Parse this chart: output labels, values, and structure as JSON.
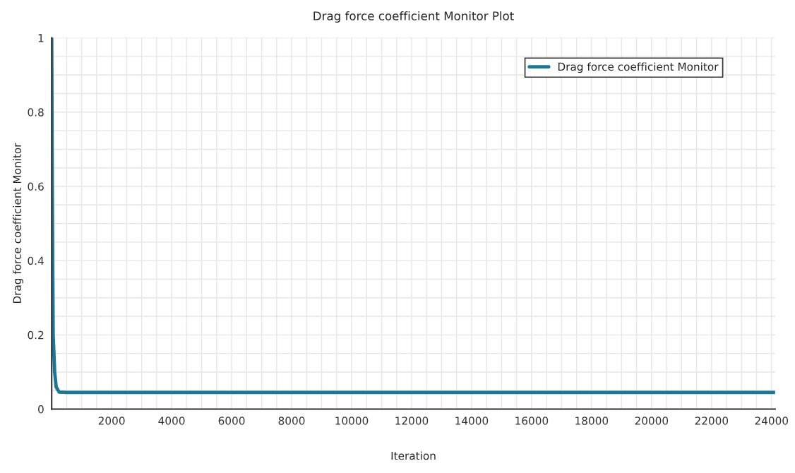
{
  "chart_data": {
    "type": "line",
    "title": "Drag force coefficient Monitor Plot",
    "xlabel": "Iteration",
    "ylabel": "Drag force coefficient Monitor",
    "x": [
      1,
      20,
      50,
      100,
      150,
      250,
      500,
      24120
    ],
    "series": [
      {
        "name": "Drag force coefficient Monitor",
        "color": "#1a7896",
        "values": [
          1,
          0.6,
          0.2,
          0.1,
          0.06,
          0.046,
          0.045,
          0.045
        ]
      }
    ],
    "xlim": [
      1,
      24120
    ],
    "ylim": [
      0,
      1
    ],
    "xticks": [
      {
        "value": 500,
        "label": null
      },
      {
        "value": 1000,
        "label": null
      },
      {
        "value": 1500,
        "label": null
      },
      2000,
      {
        "value": 2500,
        "label": null
      },
      {
        "value": 3000,
        "label": null
      },
      {
        "value": 3500,
        "label": null
      },
      4000,
      {
        "value": 4500,
        "label": null
      },
      {
        "value": 5000,
        "label": null
      },
      {
        "value": 5500,
        "label": null
      },
      6000,
      {
        "value": 6500,
        "label": null
      },
      {
        "value": 7000,
        "label": null
      },
      {
        "value": 7500,
        "label": null
      },
      8000,
      {
        "value": 8500,
        "label": null
      },
      {
        "value": 9000,
        "label": null
      },
      {
        "value": 9500,
        "label": null
      },
      10000,
      {
        "value": 10500,
        "label": null
      },
      {
        "value": 11000,
        "label": null
      },
      {
        "value": 11500,
        "label": null
      },
      12000,
      {
        "value": 12500,
        "label": null
      },
      {
        "value": 13000,
        "label": null
      },
      {
        "value": 13500,
        "label": null
      },
      14000,
      {
        "value": 14500,
        "label": null
      },
      {
        "value": 15000,
        "label": null
      },
      {
        "value": 15500,
        "label": null
      },
      16000,
      {
        "value": 16500,
        "label": null
      },
      {
        "value": 17000,
        "label": null
      },
      {
        "value": 17500,
        "label": null
      },
      18000,
      {
        "value": 18500,
        "label": null
      },
      {
        "value": 19000,
        "label": null
      },
      {
        "value": 19500,
        "label": null
      },
      20000,
      {
        "value": 20500,
        "label": null
      },
      {
        "value": 21000,
        "label": null
      },
      {
        "value": 21500,
        "label": null
      },
      22000,
      {
        "value": 22500,
        "label": null
      },
      {
        "value": 23000,
        "label": null
      },
      {
        "value": 23500,
        "label": null
      },
      24000
    ],
    "yticks": [
      0,
      {
        "value": 0.05,
        "label": null
      },
      {
        "value": 0.1,
        "label": null
      },
      {
        "value": 0.15,
        "label": null
      },
      0.2,
      {
        "value": 0.25,
        "label": null
      },
      {
        "value": 0.3,
        "label": null
      },
      {
        "value": 0.35,
        "label": null
      },
      0.4,
      {
        "value": 0.45,
        "label": null
      },
      {
        "value": 0.5,
        "label": null
      },
      {
        "value": 0.55,
        "label": null
      },
      0.6,
      {
        "value": 0.65,
        "label": null
      },
      {
        "value": 0.7,
        "label": null
      },
      {
        "value": 0.75,
        "label": null
      },
      0.8,
      {
        "value": 0.85,
        "label": null
      },
      {
        "value": 0.9,
        "label": null
      },
      {
        "value": 0.95,
        "label": null
      },
      1
    ],
    "grid": true,
    "legend": "top right",
    "marker": "none",
    "line_style": "solid"
  }
}
